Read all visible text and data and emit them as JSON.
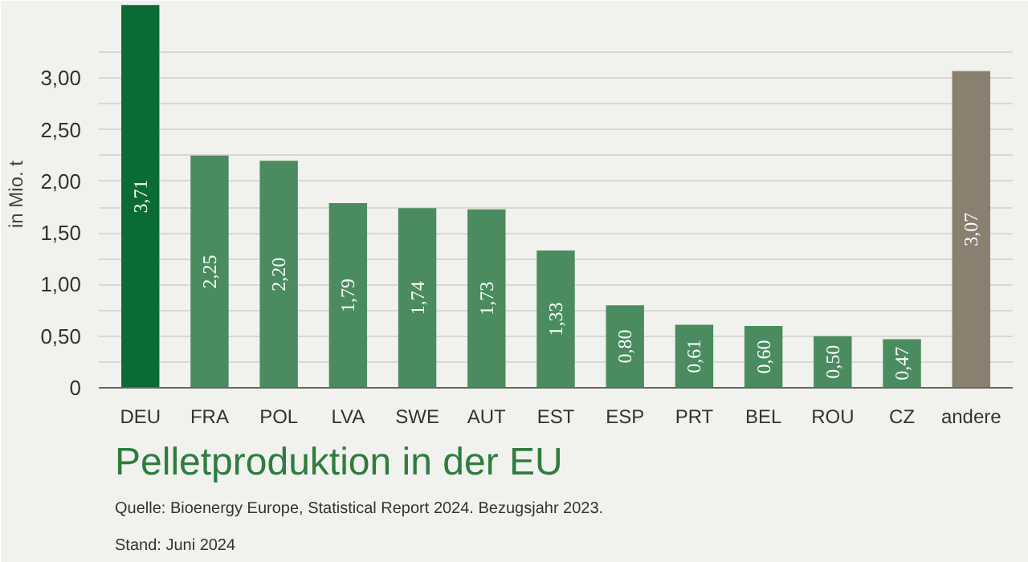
{
  "chart_data": {
    "type": "bar",
    "title": "Pelletproduktion in der EU",
    "ylabel": "in Mio. t",
    "categories": [
      "DEU",
      "FRA",
      "POL",
      "LVA",
      "SWE",
      "AUT",
      "EST",
      "ESP",
      "PRT",
      "BEL",
      "ROU",
      "CZ",
      "andere"
    ],
    "values": [
      3.71,
      2.25,
      2.2,
      1.79,
      1.74,
      1.73,
      1.33,
      0.8,
      0.61,
      0.6,
      0.5,
      0.47,
      3.07
    ],
    "value_labels": [
      "3,71",
      "2,25",
      "2,20",
      "1,79",
      "1,74",
      "1,73",
      "1,33",
      "0,80",
      "0,61",
      "0,60",
      "0,50",
      "0,47",
      "3,07"
    ],
    "colors": [
      "#0b6b35",
      "#4a8c5f",
      "#4a8c5f",
      "#4a8c5f",
      "#4a8c5f",
      "#4a8c5f",
      "#4a8c5f",
      "#4a8c5f",
      "#4a8c5f",
      "#4a8c5f",
      "#4a8c5f",
      "#4a8c5f",
      "#8a8070"
    ],
    "ylim": [
      0,
      3.75
    ],
    "yticks": [
      0,
      {
        "value": 0.25,
        "label": null
      },
      {
        "value": 0.5,
        "label": "0,50"
      },
      {
        "value": 0.75,
        "label": null
      },
      {
        "value": 1.0,
        "label": "1,00"
      },
      {
        "value": 1.25,
        "label": null
      },
      {
        "value": 1.5,
        "label": "1,50"
      },
      {
        "value": 1.75,
        "label": null
      },
      {
        "value": 2.0,
        "label": "2,00"
      },
      {
        "value": 2.25,
        "label": null
      },
      {
        "value": 2.5,
        "label": "2,50"
      },
      {
        "value": 2.75,
        "label": null
      },
      {
        "value": 3.0,
        "label": "3,00"
      },
      {
        "value": 3.25,
        "label": null
      }
    ],
    "grid": "y",
    "annotations": [
      "Quelle: Bioenergy Europe, Statistical Report 2024. Bezugsjahr 2023.",
      "Stand: Juni 2024"
    ]
  }
}
